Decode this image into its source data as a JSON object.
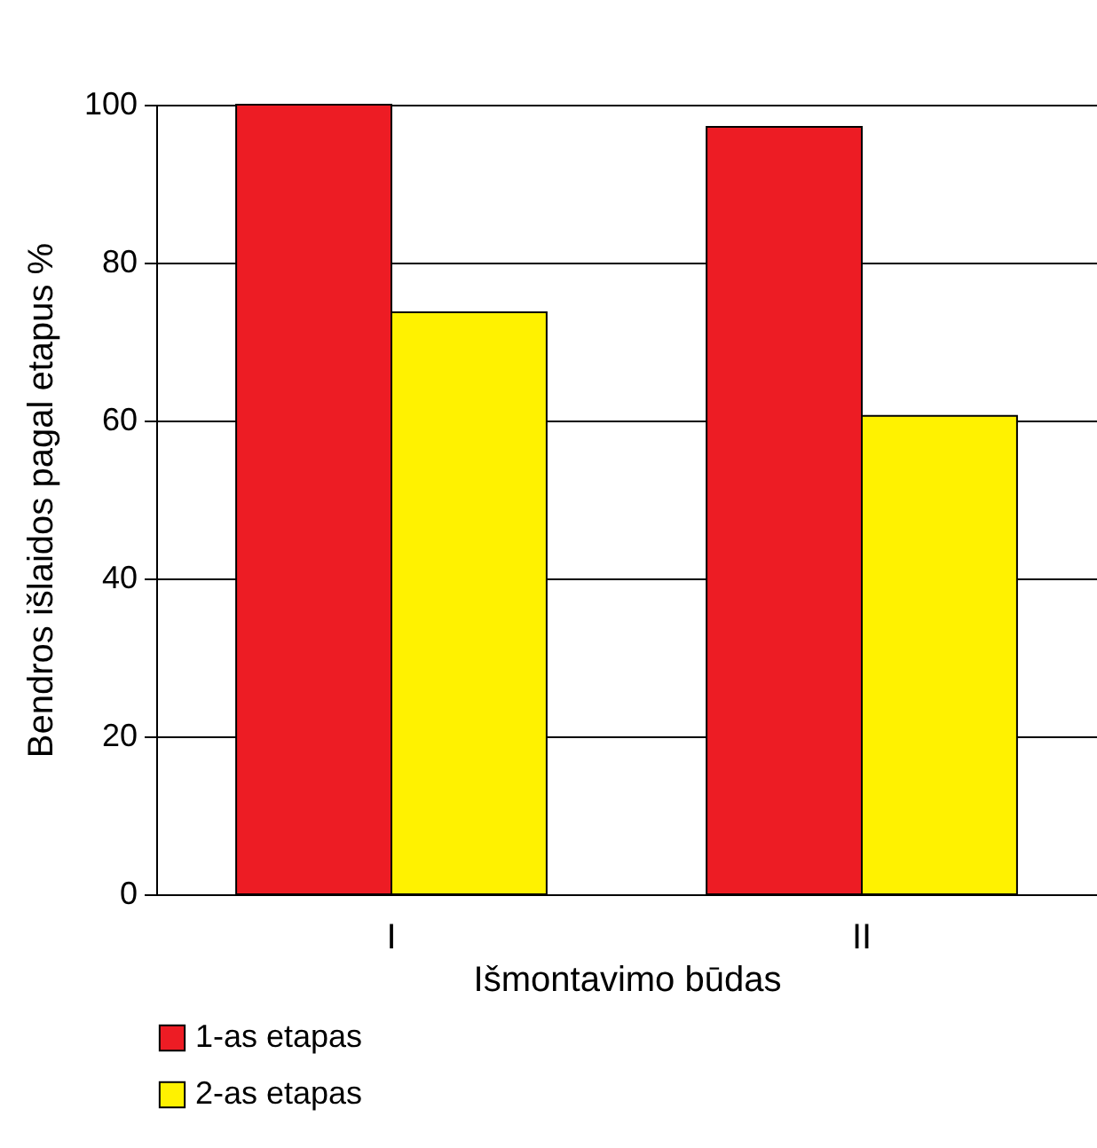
{
  "chart_data": {
    "type": "bar",
    "xlabel": "Išmontavimo būdas",
    "ylabel": "Bendros išlaidos pagal etapus %",
    "categories": [
      "I",
      "II"
    ],
    "series": [
      {
        "name": "1-as etapas",
        "color": "#ed1c24",
        "values": [
          100,
          97.2
        ]
      },
      {
        "name": "2-as etapas",
        "color": "#fff200",
        "values": [
          73.7,
          60.6
        ]
      }
    ],
    "ylim": [
      0,
      100
    ],
    "yticks": [
      0,
      20,
      40,
      60,
      80,
      100
    ],
    "grid": "y",
    "legend": "bottom"
  }
}
